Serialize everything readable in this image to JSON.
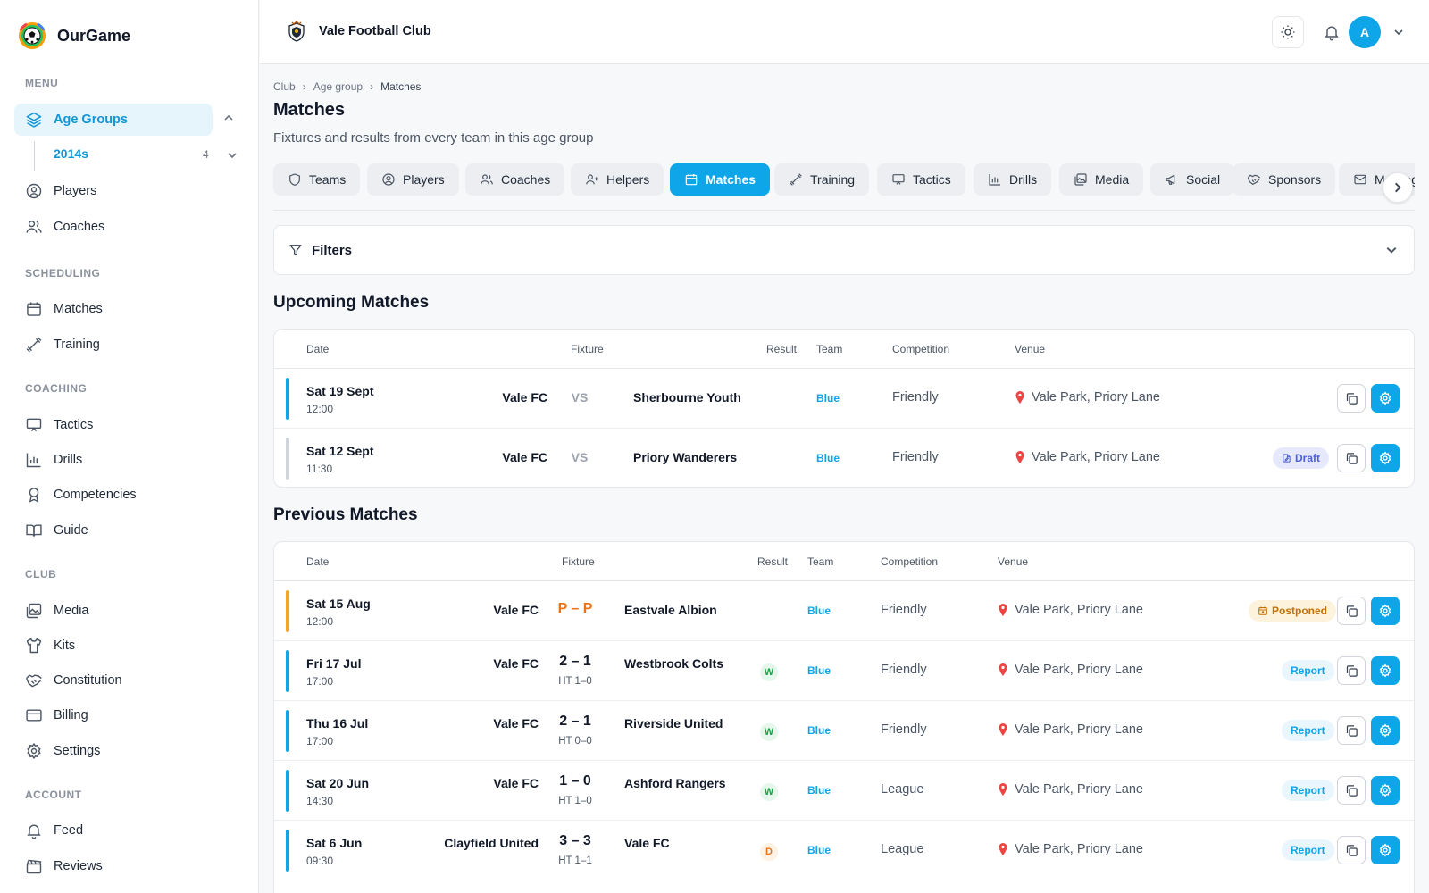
{
  "app": {
    "name": "OurGame"
  },
  "club": {
    "name": "Vale Football Club"
  },
  "user": {
    "initial": "A"
  },
  "sidebar": {
    "menu_title": "MENU",
    "age_groups_label": "Age Groups",
    "age_group_item": {
      "label": "2014s",
      "count": "4"
    },
    "players": "Players",
    "coaches": "Coaches",
    "scheduling_title": "SCHEDULING",
    "matches": "Matches",
    "training": "Training",
    "coaching_title": "COACHING",
    "tactics": "Tactics",
    "drills": "Drills",
    "competencies": "Competencies",
    "guide": "Guide",
    "club_title": "CLUB",
    "media": "Media",
    "kits": "Kits",
    "constitution": "Constitution",
    "billing": "Billing",
    "settings": "Settings",
    "account_title": "ACCOUNT",
    "feed": "Feed",
    "reviews": "Reviews"
  },
  "breadcrumb": [
    "Club",
    "Age group",
    "Matches"
  ],
  "page": {
    "title": "Matches",
    "subtitle": "Fixtures and results from every team in this age group"
  },
  "tabs": [
    "Teams",
    "Players",
    "Coaches",
    "Helpers",
    "Matches",
    "Training",
    "Tactics",
    "Drills",
    "Media",
    "Social",
    "Sponsors",
    "Messages"
  ],
  "active_tab": "Matches",
  "filters": {
    "label": "Filters"
  },
  "upcoming": {
    "title": "Upcoming Matches",
    "headers": {
      "date": "Date",
      "fixture": "Fixture",
      "result": "Result",
      "team": "Team",
      "competition": "Competition",
      "venue": "Venue"
    },
    "vs_label": "VS",
    "rows": [
      {
        "date": "Sat 19 Sept",
        "time": "12:00",
        "home": "Vale FC",
        "away": "Sherbourne Youth",
        "team": "Blue",
        "competition": "Friendly",
        "venue": "Vale Park, Priory Lane",
        "status_color": "#0ea5e9",
        "badge": ""
      },
      {
        "date": "Sat 12 Sept",
        "time": "11:30",
        "home": "Vale FC",
        "away": "Priory Wanderers",
        "team": "Blue",
        "competition": "Friendly",
        "venue": "Vale Park, Priory Lane",
        "status_color": "#d1d5db",
        "badge": "Draft"
      }
    ]
  },
  "previous": {
    "title": "Previous Matches",
    "headers": {
      "date": "Date",
      "fixture": "Fixture",
      "result": "Result",
      "team": "Team",
      "competition": "Competition",
      "venue": "Venue"
    },
    "rows": [
      {
        "date": "Sat 15 Aug",
        "time": "12:00",
        "home": "Vale FC",
        "score": "P – P",
        "ht": "",
        "away": "Eastvale Albion",
        "result": "",
        "team": "Blue",
        "competition": "Friendly",
        "venue": "Vale Park, Priory Lane",
        "status_color": "#f5a524",
        "badge": "Postponed"
      },
      {
        "date": "Fri 17 Jul",
        "time": "17:00",
        "home": "Vale FC",
        "score": "2 – 1",
        "ht": "HT 1–0",
        "away": "Westbrook Colts",
        "result": "W",
        "team": "Blue",
        "competition": "Friendly",
        "venue": "Vale Park, Priory Lane",
        "status_color": "#0ea5e9",
        "badge": "Report"
      },
      {
        "date": "Thu 16 Jul",
        "time": "17:00",
        "home": "Vale FC",
        "score": "2 – 1",
        "ht": "HT 0–0",
        "away": "Riverside United",
        "result": "W",
        "team": "Blue",
        "competition": "Friendly",
        "venue": "Vale Park, Priory Lane",
        "status_color": "#0ea5e9",
        "badge": "Report"
      },
      {
        "date": "Sat 20 Jun",
        "time": "14:30",
        "home": "Vale FC",
        "score": "1 – 0",
        "ht": "HT 1–0",
        "away": "Ashford Rangers",
        "result": "W",
        "team": "Blue",
        "competition": "League",
        "venue": "Vale Park, Priory Lane",
        "status_color": "#0ea5e9",
        "badge": "Report"
      },
      {
        "date": "Sat 6 Jun",
        "time": "09:30",
        "home": "Clayfield United",
        "score": "3 – 3",
        "ht": "HT 1–1",
        "away": "Vale FC",
        "result": "D",
        "team": "Blue",
        "competition": "League",
        "venue": "Vale Park, Priory Lane",
        "status_color": "#0ea5e9",
        "badge": "Report"
      }
    ]
  },
  "colors": {
    "accent": "#0ea5e9",
    "postponed": "#f5a524",
    "draft": "#4f5fd9",
    "win": "#16a34a",
    "draw": "#ea7317"
  }
}
